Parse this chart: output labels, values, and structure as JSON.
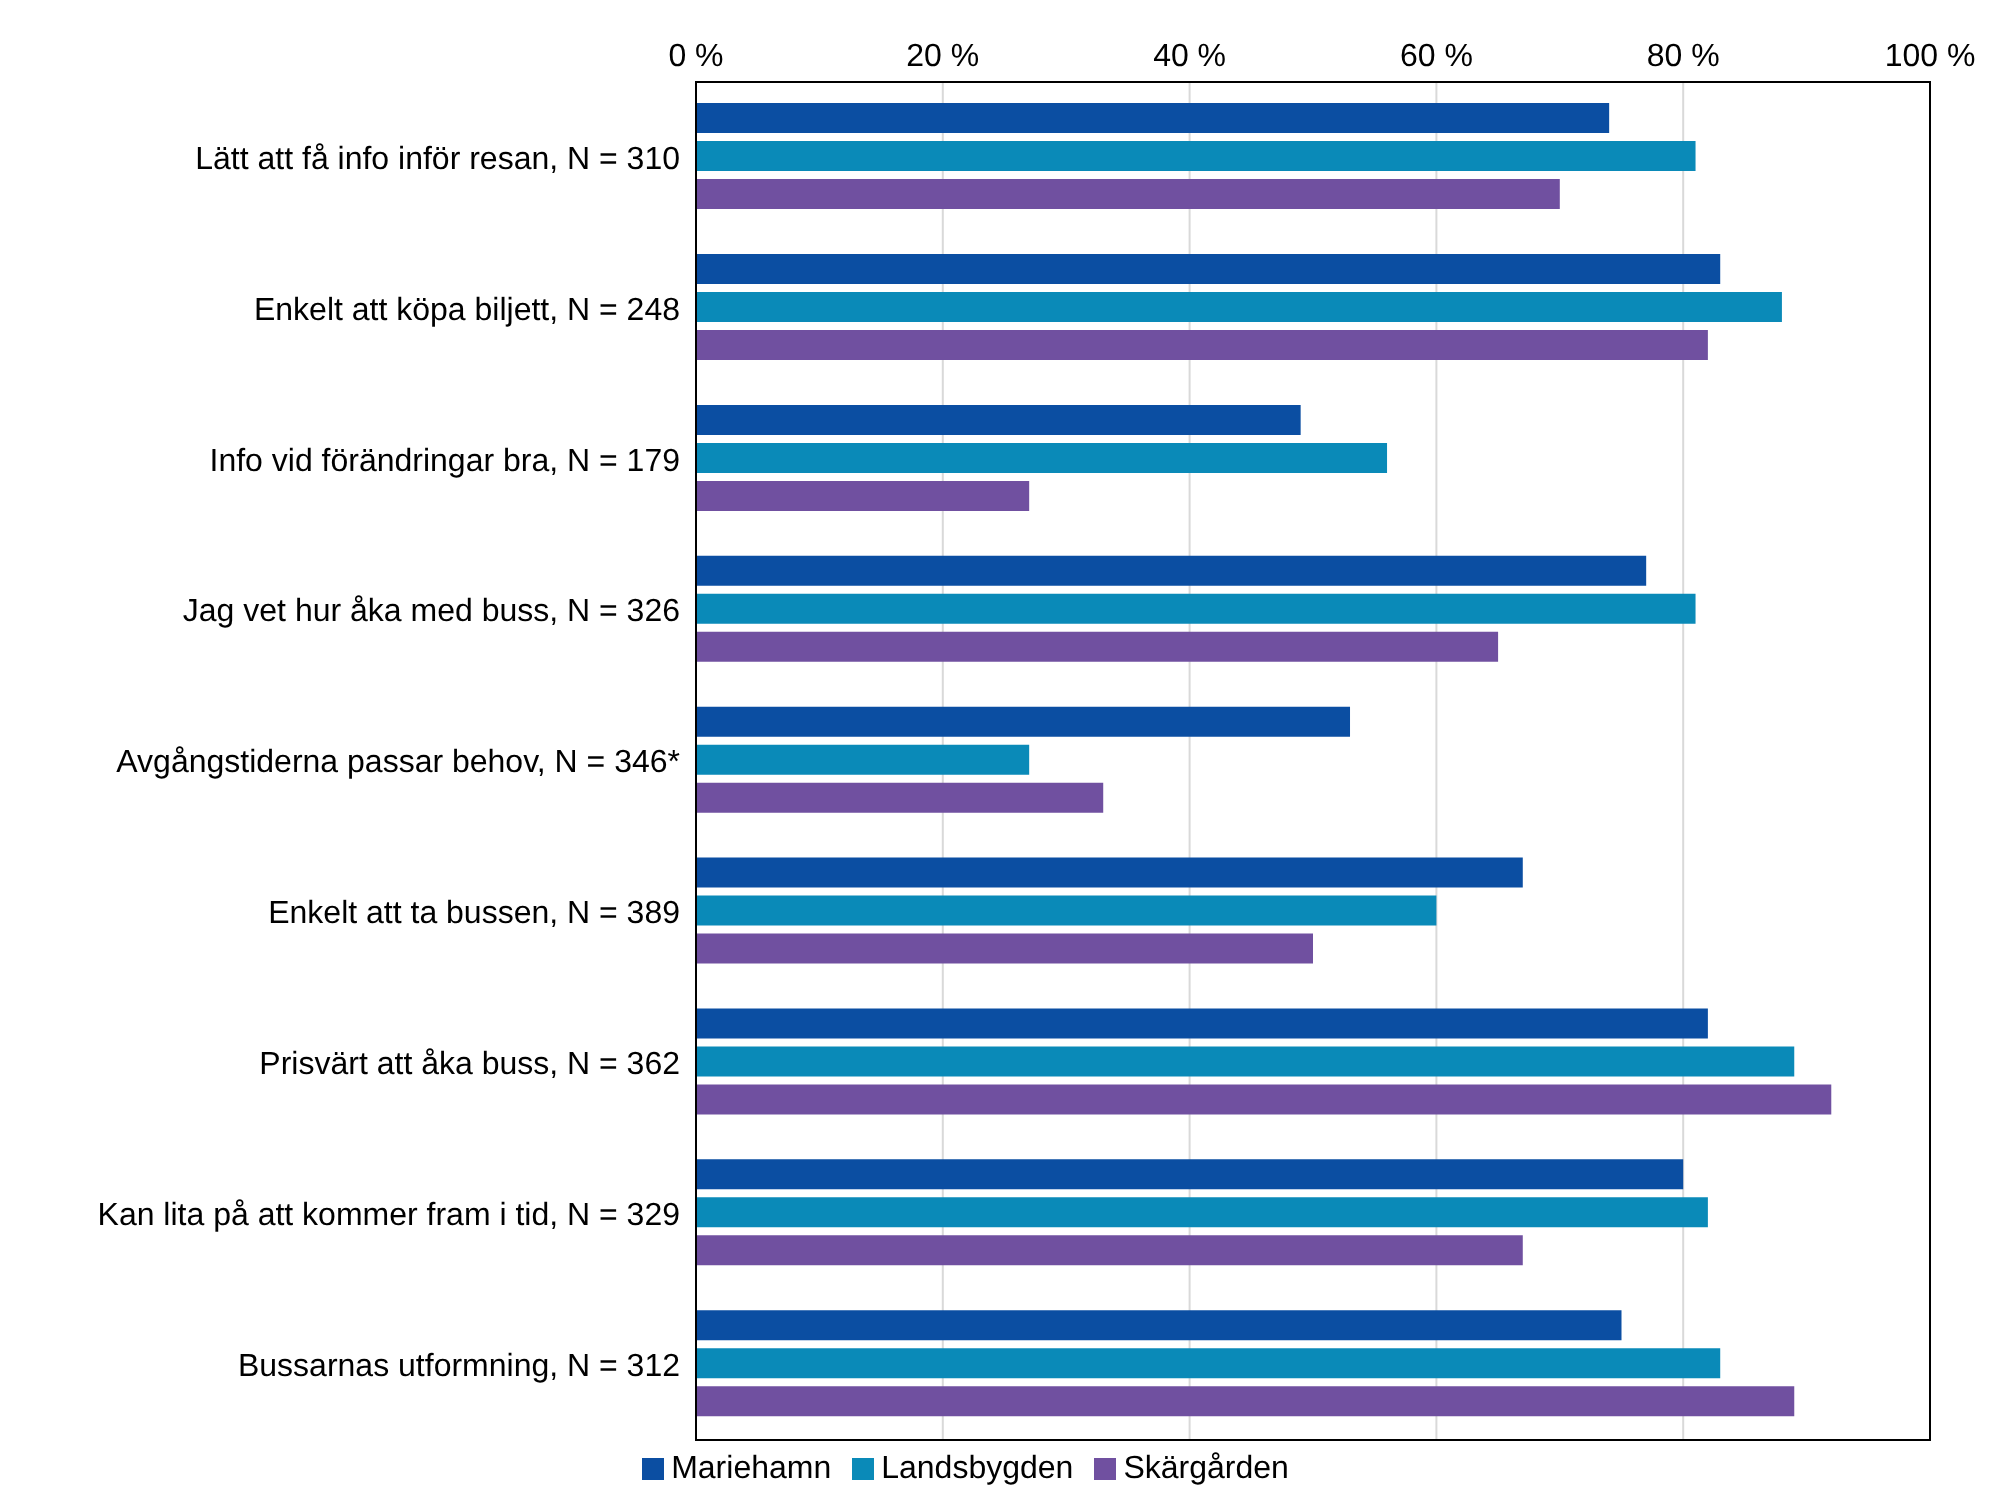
{
  "chart_data": {
    "type": "bar",
    "orientation": "horizontal",
    "categories": [
      "Lätt att få info inför resan, N = 310",
      "Enkelt att köpa biljett, N = 248",
      "Info vid förändringar bra, N = 179",
      "Jag vet hur åka med buss, N = 326",
      "Avgångstiderna passar behov, N = 346*",
      "Enkelt att ta bussen, N = 389",
      "Prisvärt att åka buss, N = 362",
      "Kan lita på att kommer fram i tid, N = 329",
      "Bussarnas utformning, N = 312"
    ],
    "series": [
      {
        "name": "Mariehamn",
        "color": "#0b4ea2",
        "values": [
          74,
          83,
          49,
          77,
          53,
          67,
          82,
          80,
          75
        ]
      },
      {
        "name": "Landsbygden",
        "color": "#0a8ab8",
        "values": [
          81,
          88,
          56,
          81,
          27,
          60,
          89,
          82,
          83
        ]
      },
      {
        "name": "Skärgården",
        "color": "#7050a0",
        "values": [
          70,
          82,
          27,
          65,
          33,
          50,
          92,
          67,
          89
        ]
      }
    ],
    "xlim": [
      0,
      100
    ],
    "xticks": [
      {
        "value": 0,
        "label": "0 %"
      },
      {
        "value": 20,
        "label": "20 %"
      },
      {
        "value": 40,
        "label": "40 %"
      },
      {
        "value": 60,
        "label": "60 %"
      },
      {
        "value": 80,
        "label": "80 %"
      },
      {
        "value": 100,
        "label": "100 %"
      }
    ],
    "grid": "x",
    "legend": "bottom"
  }
}
